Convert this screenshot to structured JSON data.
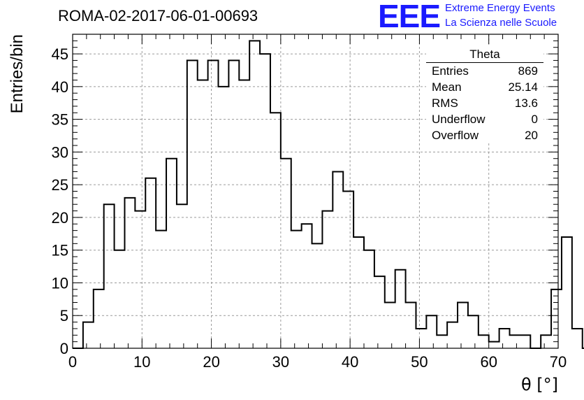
{
  "header": {
    "title": "ROMA-02-2017-06-01-00693"
  },
  "logo": {
    "mark": "EEE",
    "line1": "Extreme Energy Events",
    "line2": "La Scienza nelle Scuole",
    "color": "#1a1aff"
  },
  "stats_box": {
    "title": "Theta",
    "rows": [
      {
        "label": "Entries",
        "value": "869"
      },
      {
        "label": "Mean",
        "value": "25.14"
      },
      {
        "label": "RMS",
        "value": "13.6"
      },
      {
        "label": "Underflow",
        "value": "0"
      },
      {
        "label": "Overflow",
        "value": "20"
      }
    ]
  },
  "chart_data": {
    "type": "histogram",
    "title": "ROMA-02-2017-06-01-00693",
    "xlabel": "θ [°]",
    "ylabel": "Entries/bin",
    "xlim": [
      0,
      70
    ],
    "ylim": [
      0,
      48
    ],
    "xticks": [
      0,
      10,
      20,
      30,
      40,
      50,
      60,
      70
    ],
    "yticks": [
      0,
      5,
      10,
      15,
      20,
      25,
      30,
      35,
      40,
      45
    ],
    "grid": true,
    "bin_width": 1.5,
    "bin_edges_start": 0,
    "values": [
      0,
      4,
      9,
      22,
      15,
      23,
      21,
      26,
      18,
      29,
      22,
      44,
      41,
      44,
      40,
      44,
      41,
      47,
      45,
      36,
      29,
      18,
      19,
      16,
      21,
      27,
      24,
      17,
      15,
      11,
      7,
      12,
      7,
      3,
      5,
      2,
      4,
      7,
      5,
      2,
      1,
      3,
      2,
      2,
      0,
      2,
      9,
      17,
      3,
      0
    ],
    "line_color": "#000000"
  }
}
